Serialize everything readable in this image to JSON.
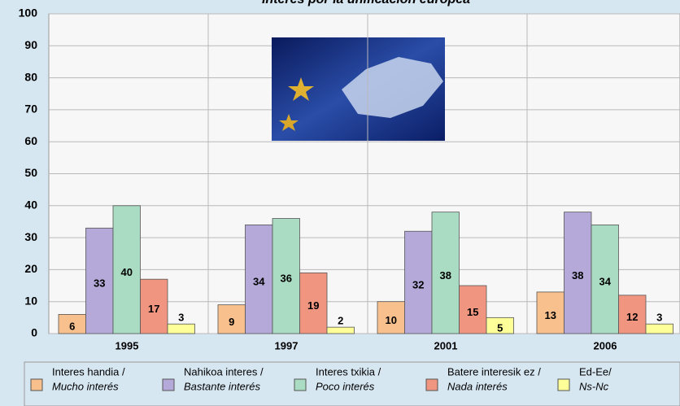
{
  "chart_data": {
    "type": "bar",
    "title": "Interés por la unificación europea",
    "categories": [
      "1995",
      "1997",
      "2001",
      "2006"
    ],
    "series": [
      {
        "name": "Interes handia /",
        "name_alt": "Mucho interés",
        "color": "#f7c08c",
        "values": [
          6,
          9,
          10,
          13
        ]
      },
      {
        "name": "Nahikoa interes /",
        "name_alt": "Bastante interés",
        "color": "#b4a9d8",
        "values": [
          33,
          34,
          32,
          38
        ]
      },
      {
        "name": "Interes txikia /",
        "name_alt": "Poco interés",
        "color": "#a9dcc2",
        "values": [
          40,
          36,
          38,
          34
        ]
      },
      {
        "name": "Batere interesik ez /",
        "name_alt": "Nada interés",
        "color": "#f09580",
        "values": [
          17,
          19,
          15,
          12
        ]
      },
      {
        "name": "Ed-Ee/",
        "name_alt": "Ns-Nc",
        "color": "#ffff99",
        "values": [
          3,
          2,
          5,
          3
        ]
      }
    ],
    "ylim": [
      0,
      100
    ],
    "yticks": [
      0,
      10,
      20,
      30,
      40,
      50,
      60,
      70,
      80,
      90,
      100
    ],
    "grid": true
  }
}
